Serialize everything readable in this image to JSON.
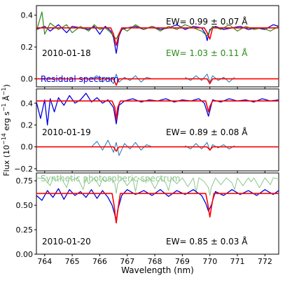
{
  "figure": {
    "ylabel_main": "Flux (10",
    "ylabel_exp1": "−14",
    "ylabel_mid": " erg s",
    "ylabel_exp2": "−1",
    "ylabel_mid2": " Å",
    "ylabel_exp3": "−1",
    "ylabel_end": ")",
    "xlabel": "Wavelength (nm)"
  },
  "chart_data": [
    {
      "type": "line",
      "panel": "top",
      "date": "2010-01-18",
      "ew_black": "EW= 0.99 ±  0.07 Å",
      "ew_green": "EW= 1.03 ±  0.11 Å",
      "residual_label": "Residual spectrum",
      "xlim": [
        763.7,
        772.5
      ],
      "ylim": [
        -0.05,
        0.46
      ],
      "yticks": [
        "0.0",
        "0.2",
        "0.4"
      ],
      "ytick_values": [
        0.0,
        0.2,
        0.4
      ],
      "colors": {
        "observed": "#0000dd",
        "green": "#2a8a1a",
        "model": "#ff0000",
        "residual": "#1f77b4"
      },
      "series": [
        {
          "name": "",
          "color": "observed",
          "x": [
            763.7,
            764.0,
            764.2,
            764.5,
            764.8,
            765.0,
            765.3,
            765.6,
            765.8,
            766.0,
            766.2,
            766.4,
            766.5,
            766.6,
            766.7,
            766.8,
            767.0,
            767.3,
            767.6,
            767.9,
            768.2,
            768.5,
            768.8,
            769.1,
            769.4,
            769.7,
            769.85,
            769.9,
            770.0,
            770.2,
            770.5,
            770.8,
            771.1,
            771.4,
            771.7,
            772.0,
            772.3,
            772.5
          ],
          "y": [
            0.31,
            0.33,
            0.3,
            0.34,
            0.29,
            0.33,
            0.32,
            0.31,
            0.33,
            0.28,
            0.33,
            0.3,
            0.26,
            0.16,
            0.27,
            0.31,
            0.32,
            0.33,
            0.31,
            0.33,
            0.31,
            0.32,
            0.34,
            0.31,
            0.33,
            0.32,
            0.28,
            0.24,
            0.31,
            0.33,
            0.31,
            0.32,
            0.33,
            0.31,
            0.32,
            0.31,
            0.34,
            0.33
          ]
        },
        {
          "name": "",
          "color": "green",
          "x": [
            763.7,
            763.9,
            764.0,
            764.2,
            764.5,
            764.8,
            765.0,
            765.3,
            765.6,
            765.8,
            766.0,
            766.2,
            766.4,
            766.6,
            766.8,
            767.0,
            767.3,
            767.6,
            767.9,
            768.2,
            768.5,
            768.8,
            769.1,
            769.4,
            769.7,
            769.9,
            770.1,
            770.4,
            770.7,
            771.0,
            771.3,
            771.6,
            771.9,
            772.2,
            772.5
          ],
          "y": [
            0.3,
            0.42,
            0.28,
            0.35,
            0.31,
            0.34,
            0.29,
            0.33,
            0.3,
            0.34,
            0.31,
            0.32,
            0.29,
            0.25,
            0.32,
            0.3,
            0.34,
            0.31,
            0.33,
            0.3,
            0.33,
            0.31,
            0.34,
            0.32,
            0.3,
            0.27,
            0.33,
            0.31,
            0.34,
            0.3,
            0.33,
            0.31,
            0.32,
            0.3,
            0.33
          ]
        },
        {
          "name": "",
          "color": "model",
          "x": [
            763.7,
            766.4,
            766.5,
            766.6,
            766.7,
            766.8,
            769.8,
            769.9,
            770.0,
            770.1,
            772.5
          ],
          "y": [
            0.32,
            0.32,
            0.28,
            0.21,
            0.28,
            0.32,
            0.32,
            0.29,
            0.25,
            0.32,
            0.32
          ]
        },
        {
          "name": "",
          "color": "residual",
          "x": [
            765.7,
            765.9,
            766.1,
            766.3,
            766.5,
            766.6,
            766.7,
            766.9,
            767.1,
            767.3,
            767.5,
            767.7,
            767.9
          ],
          "y": [
            0.0,
            0.02,
            -0.02,
            0.01,
            -0.03,
            0.03,
            -0.02,
            0.01,
            -0.01,
            0.02,
            -0.02,
            0.01,
            0.0
          ]
        },
        {
          "name": "",
          "color": "residual",
          "x": [
            769.1,
            769.3,
            769.5,
            769.7,
            769.9,
            770.0,
            770.1,
            770.3,
            770.5,
            770.7,
            770.9
          ],
          "y": [
            0.01,
            -0.01,
            0.02,
            -0.01,
            0.03,
            -0.02,
            0.02,
            -0.01,
            0.01,
            -0.02,
            0.01
          ]
        },
        {
          "name": "",
          "color": "model",
          "x": [
            763.7,
            766.5,
            766.6,
            766.7,
            769.9,
            770.0,
            770.1,
            772.5
          ],
          "y": [
            0.0,
            0.0,
            -0.04,
            0.0,
            0.0,
            -0.03,
            0.0,
            0.0
          ]
        }
      ]
    },
    {
      "type": "line",
      "panel": "middle",
      "date": "2010-01-19",
      "ew_black": "EW= 0.89 ±  0.08 Å",
      "xlim": [
        763.7,
        772.5
      ],
      "ylim": [
        -0.22,
        0.53
      ],
      "yticks": [
        "−0.2",
        "0.0",
        "0.2",
        "0.4"
      ],
      "ytick_values": [
        -0.2,
        0.0,
        0.2,
        0.4
      ],
      "colors": {
        "observed": "#0000dd",
        "model": "#ff0000",
        "residual": "#1f77b4"
      },
      "series": [
        {
          "name": "",
          "color": "observed",
          "x": [
            763.7,
            763.85,
            764.0,
            764.1,
            764.2,
            764.35,
            764.5,
            764.7,
            764.9,
            765.1,
            765.3,
            765.5,
            765.7,
            765.9,
            766.1,
            766.3,
            766.5,
            766.6,
            766.7,
            766.9,
            767.2,
            767.5,
            767.8,
            768.1,
            768.4,
            768.7,
            769.0,
            769.3,
            769.6,
            769.8,
            769.95,
            770.1,
            770.4,
            770.7,
            771.0,
            771.3,
            771.6,
            771.9,
            772.2,
            772.5
          ],
          "y": [
            0.41,
            0.26,
            0.43,
            0.2,
            0.44,
            0.32,
            0.45,
            0.38,
            0.47,
            0.4,
            0.43,
            0.49,
            0.41,
            0.45,
            0.4,
            0.43,
            0.36,
            0.21,
            0.38,
            0.42,
            0.44,
            0.41,
            0.43,
            0.42,
            0.44,
            0.41,
            0.43,
            0.42,
            0.44,
            0.4,
            0.28,
            0.43,
            0.41,
            0.44,
            0.42,
            0.43,
            0.41,
            0.44,
            0.42,
            0.43
          ]
        },
        {
          "name": "",
          "color": "model",
          "x": [
            763.7,
            766.45,
            766.55,
            766.6,
            766.65,
            766.75,
            769.85,
            769.9,
            769.95,
            770.0,
            770.1,
            772.5
          ],
          "y": [
            0.42,
            0.42,
            0.36,
            0.25,
            0.36,
            0.42,
            0.42,
            0.37,
            0.32,
            0.37,
            0.42,
            0.42
          ]
        },
        {
          "name": "",
          "color": "residual",
          "x": [
            765.7,
            765.9,
            766.1,
            766.3,
            766.5,
            766.6,
            766.7,
            766.9,
            767.1,
            767.3,
            767.5,
            767.7,
            767.9
          ],
          "y": [
            0.0,
            0.05,
            -0.03,
            0.06,
            -0.05,
            0.04,
            -0.08,
            0.03,
            -0.02,
            0.04,
            -0.03,
            0.02,
            0.0
          ]
        },
        {
          "name": "",
          "color": "residual",
          "x": [
            769.1,
            769.3,
            769.5,
            769.7,
            769.9,
            770.0,
            770.1,
            770.3,
            770.5,
            770.7,
            770.9
          ],
          "y": [
            0.01,
            -0.02,
            0.03,
            -0.02,
            0.04,
            -0.03,
            0.02,
            -0.01,
            0.02,
            -0.02,
            0.01
          ]
        },
        {
          "name": "",
          "color": "model",
          "x": [
            763.7,
            766.5,
            766.6,
            766.7,
            769.9,
            770.0,
            770.1,
            772.5
          ],
          "y": [
            0.0,
            0.0,
            -0.04,
            0.0,
            0.0,
            -0.03,
            0.0,
            0.0
          ]
        }
      ]
    },
    {
      "type": "line",
      "panel": "bottom",
      "date": "2010-01-20",
      "ew_black": "EW= 0.85 ±  0.03 Å",
      "synthetic_label": "Synthetic photospheric spectrum",
      "xlim": [
        763.7,
        772.5
      ],
      "ylim": [
        0.0,
        0.83
      ],
      "yticks": [
        "0.00",
        "0.25",
        "0.50",
        "0.75"
      ],
      "ytick_values": [
        0.0,
        0.25,
        0.5,
        0.75
      ],
      "xticks": [
        "764",
        "765",
        "766",
        "767",
        "768",
        "769",
        "770",
        "771",
        "772"
      ],
      "xtick_values": [
        764,
        765,
        766,
        767,
        768,
        769,
        770,
        771,
        772
      ],
      "colors": {
        "observed": "#0000dd",
        "model": "#ff0000",
        "synthetic": "#8cc78c"
      },
      "series": [
        {
          "name": "",
          "color": "synthetic",
          "x": [
            763.7,
            764.0,
            764.2,
            764.3,
            764.4,
            764.6,
            764.8,
            764.9,
            765.0,
            765.2,
            765.4,
            765.5,
            765.6,
            765.8,
            766.0,
            766.1,
            766.2,
            766.4,
            766.55,
            766.6,
            766.65,
            766.8,
            767.0,
            767.2,
            767.3,
            767.4,
            767.6,
            767.8,
            768.0,
            768.2,
            768.4,
            768.5,
            768.6,
            768.8,
            769.0,
            769.2,
            769.4,
            769.5,
            769.6,
            769.8,
            769.95,
            770.0,
            770.05,
            770.2,
            770.4,
            770.6,
            770.8,
            770.9,
            771.0,
            771.2,
            771.4,
            771.5,
            771.6,
            771.8,
            772.0,
            772.2,
            772.3,
            772.5
          ],
          "y": [
            0.78,
            0.77,
            0.7,
            0.78,
            0.75,
            0.78,
            0.68,
            0.78,
            0.76,
            0.78,
            0.66,
            0.78,
            0.72,
            0.78,
            0.69,
            0.78,
            0.74,
            0.78,
            0.72,
            0.62,
            0.72,
            0.78,
            0.7,
            0.78,
            0.64,
            0.78,
            0.74,
            0.78,
            0.67,
            0.78,
            0.73,
            0.65,
            0.78,
            0.72,
            0.78,
            0.69,
            0.78,
            0.63,
            0.78,
            0.74,
            0.68,
            0.6,
            0.68,
            0.78,
            0.71,
            0.78,
            0.73,
            0.66,
            0.78,
            0.7,
            0.78,
            0.74,
            0.78,
            0.68,
            0.78,
            0.71,
            0.78,
            0.77
          ]
        },
        {
          "name": "",
          "color": "observed",
          "x": [
            763.7,
            763.9,
            764.1,
            764.3,
            764.5,
            764.7,
            764.9,
            765.1,
            765.3,
            765.5,
            765.7,
            765.9,
            766.1,
            766.3,
            766.45,
            766.55,
            766.6,
            766.65,
            766.8,
            767.0,
            767.3,
            767.6,
            767.9,
            768.2,
            768.5,
            768.8,
            769.1,
            769.4,
            769.7,
            769.85,
            769.95,
            770.05,
            770.2,
            770.5,
            770.8,
            771.1,
            771.4,
            771.7,
            772.0,
            772.3,
            772.5
          ],
          "y": [
            0.6,
            0.55,
            0.65,
            0.58,
            0.67,
            0.56,
            0.66,
            0.6,
            0.64,
            0.58,
            0.66,
            0.57,
            0.65,
            0.58,
            0.5,
            0.4,
            0.32,
            0.45,
            0.6,
            0.66,
            0.61,
            0.65,
            0.6,
            0.66,
            0.59,
            0.65,
            0.61,
            0.66,
            0.6,
            0.52,
            0.44,
            0.5,
            0.64,
            0.6,
            0.66,
            0.61,
            0.65,
            0.6,
            0.66,
            0.61,
            0.65
          ]
        },
        {
          "name": "",
          "color": "model",
          "x": [
            763.7,
            766.45,
            766.52,
            766.6,
            766.68,
            766.75,
            769.85,
            769.92,
            770.0,
            770.08,
            770.15,
            772.5
          ],
          "y": [
            0.62,
            0.62,
            0.5,
            0.32,
            0.5,
            0.62,
            0.62,
            0.52,
            0.38,
            0.52,
            0.62,
            0.62
          ]
        }
      ]
    }
  ]
}
